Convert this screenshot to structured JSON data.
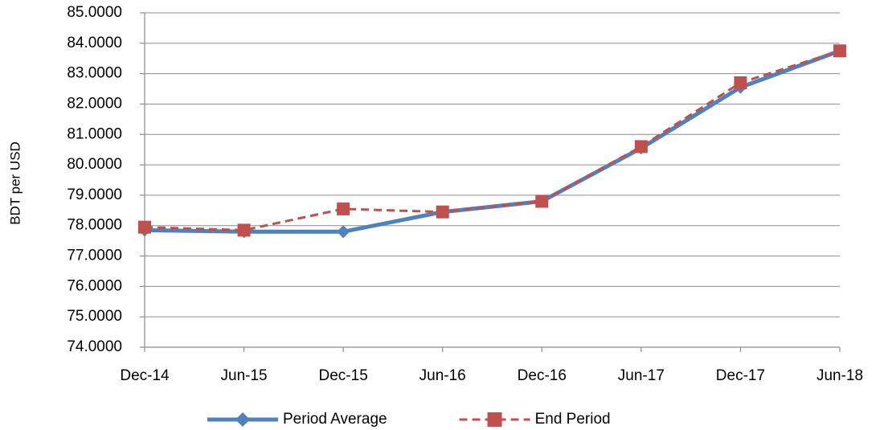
{
  "chart_data": {
    "type": "line",
    "y_label": "BDT per USD",
    "categories": [
      "Dec-14",
      "Jun-15",
      "Dec-15",
      "Jun-16",
      "Dec-16",
      "Jun-17",
      "Dec-17",
      "Jun-18"
    ],
    "series": [
      {
        "name": "Period Average",
        "color": "#4f81bd",
        "marker": "diamond",
        "dashed": false,
        "values": [
          77.85,
          77.8,
          77.8,
          78.45,
          78.8,
          80.55,
          82.55,
          83.75
        ]
      },
      {
        "name": "End Period",
        "color": "#c0504d",
        "marker": "square",
        "dashed": true,
        "values": [
          77.95,
          77.85,
          78.55,
          78.45,
          78.8,
          80.6,
          82.7,
          83.75
        ]
      }
    ],
    "ylim": [
      74,
      85
    ],
    "yticks": [
      {
        "value": 74,
        "label": "74.0000"
      },
      {
        "value": 75,
        "label": "75.0000"
      },
      {
        "value": 76,
        "label": "76.0000"
      },
      {
        "value": 77,
        "label": "77.0000"
      },
      {
        "value": 78,
        "label": "78.0000"
      },
      {
        "value": 79,
        "label": "79.0000"
      },
      {
        "value": 80,
        "label": "80.0000"
      },
      {
        "value": 81,
        "label": "81.0000"
      },
      {
        "value": 82,
        "label": "82.0000"
      },
      {
        "value": 83,
        "label": "83.0000"
      },
      {
        "value": 84,
        "label": "84.0000"
      },
      {
        "value": 85,
        "label": "85.0000"
      }
    ],
    "grid": true,
    "legend": "bottom"
  }
}
